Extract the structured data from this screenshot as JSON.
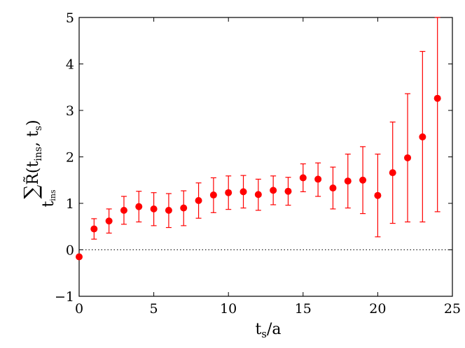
{
  "chart_data": {
    "type": "scatter",
    "title": "",
    "xlabel_main": "t",
    "xlabel_sub": "s",
    "xlabel_tail": "/a",
    "ylabel_sum": "∑",
    "ylabel_sum_sub": "t",
    "ylabel_sum_sub2": "ins",
    "ylabel_func": "R̃(t",
    "ylabel_arg1_sub": "ins",
    "ylabel_sep": ", t",
    "ylabel_arg2_sub": "s",
    "ylabel_close": ")",
    "xlim": [
      0,
      25
    ],
    "ylim": [
      -1,
      5
    ],
    "xticks": [
      0,
      5,
      10,
      15,
      20,
      25
    ],
    "xtick_labels": [
      "0",
      "5",
      "10",
      "15",
      "20",
      "25"
    ],
    "yticks": [
      -1,
      0,
      1,
      2,
      3,
      4,
      5
    ],
    "ytick_labels": [
      "−1",
      "0",
      "1",
      "2",
      "3",
      "4",
      "5"
    ],
    "reference_line": {
      "y": 0,
      "style": "dotted"
    },
    "grid": false,
    "marker_color": "#ff0000",
    "errorbar_color": "#ff0000",
    "series": [
      {
        "x": [
          0,
          1,
          2,
          3,
          4,
          5,
          6,
          7,
          8,
          9,
          10,
          11,
          12,
          13,
          14,
          15,
          16,
          17,
          18,
          19,
          20,
          21,
          22,
          23,
          24
        ],
        "y": [
          -0.15,
          0.45,
          0.62,
          0.85,
          0.93,
          0.88,
          0.85,
          0.9,
          1.06,
          1.18,
          1.23,
          1.25,
          1.19,
          1.28,
          1.26,
          1.55,
          1.52,
          1.33,
          1.48,
          1.5,
          1.17,
          1.66,
          1.98,
          2.43,
          3.26
        ],
        "err_low": [
          -0.15,
          0.23,
          0.36,
          0.55,
          0.6,
          0.52,
          0.48,
          0.52,
          0.68,
          0.8,
          0.87,
          0.9,
          0.85,
          0.97,
          0.96,
          1.25,
          1.15,
          0.88,
          0.9,
          0.78,
          0.28,
          0.57,
          0.6,
          0.6,
          0.82
        ],
        "err_high": [
          -0.15,
          0.67,
          0.88,
          1.15,
          1.26,
          1.23,
          1.21,
          1.27,
          1.44,
          1.55,
          1.59,
          1.6,
          1.52,
          1.59,
          1.56,
          1.85,
          1.87,
          1.78,
          2.06,
          2.22,
          2.06,
          2.75,
          3.36,
          4.27,
          5.0
        ]
      }
    ]
  }
}
